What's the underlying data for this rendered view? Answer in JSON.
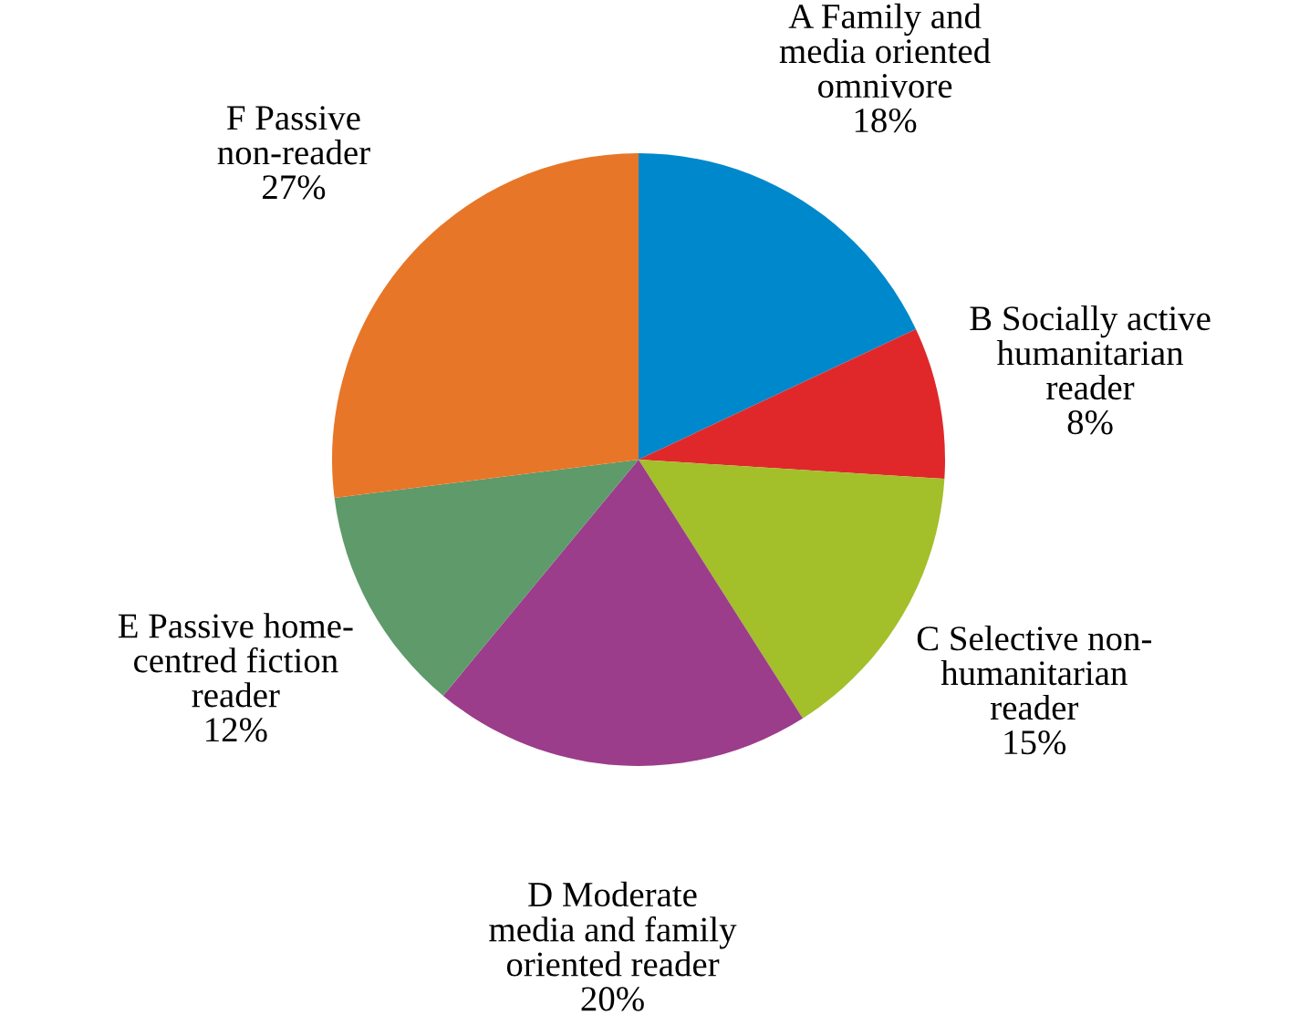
{
  "chart_data": {
    "type": "pie",
    "categories": [
      "A Family and\nmedia oriented\nomnivore",
      "B Socially active\nhumanitarian\nreader",
      "C Selective non-\nhumanitarian\nreader",
      "D Moderate\nmedia and family\noriented reader",
      "E Passive home-\ncentred fiction\nreader",
      "F Passive\nnon-reader"
    ],
    "values": [
      18,
      8,
      15,
      20,
      12,
      27
    ],
    "value_labels": [
      "18%",
      "8%",
      "15%",
      "20%",
      "12%",
      "27%"
    ],
    "colors": [
      "#0088cc",
      "#e0282a",
      "#a3bf2a",
      "#9b3d8a",
      "#5e9a6a",
      "#e87628"
    ]
  }
}
